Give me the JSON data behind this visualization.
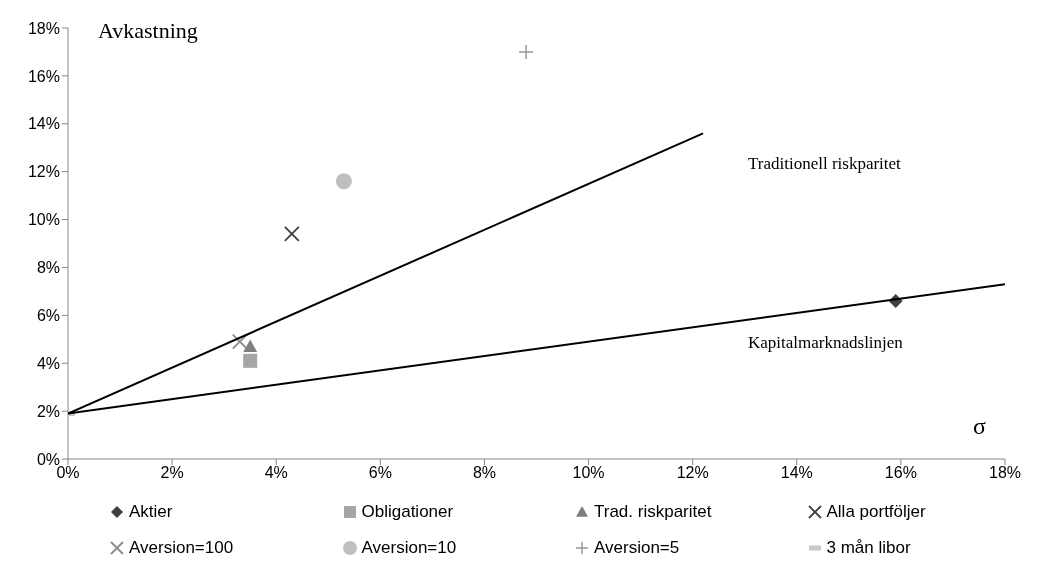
{
  "chart_data": {
    "type": "scatter",
    "xlabel": "σ",
    "ylabel": "Avkastning",
    "xlim": [
      0,
      18
    ],
    "xticks": [
      {
        "value": 0,
        "label": "0%"
      },
      {
        "value": 2,
        "label": "2%"
      },
      {
        "value": 4,
        "label": "4%"
      },
      {
        "value": 6,
        "label": "6%"
      },
      {
        "value": 8,
        "label": "8%"
      },
      {
        "value": 10,
        "label": "10%"
      },
      {
        "value": 12,
        "label": "12%"
      },
      {
        "value": 14,
        "label": "14%"
      },
      {
        "value": 16,
        "label": "16%"
      },
      {
        "value": 18,
        "label": "18%"
      }
    ],
    "ylim": [
      0,
      18
    ],
    "yticks": [
      {
        "value": 0,
        "label": "0%"
      },
      {
        "value": 2,
        "label": "2%"
      },
      {
        "value": 4,
        "label": "4%"
      },
      {
        "value": 6,
        "label": "6%"
      },
      {
        "value": 8,
        "label": "8%"
      },
      {
        "value": 10,
        "label": "10%"
      },
      {
        "value": 12,
        "label": "12%"
      },
      {
        "value": 14,
        "label": "14%"
      },
      {
        "value": 16,
        "label": "16%"
      },
      {
        "value": 18,
        "label": "18%"
      }
    ],
    "grid": false,
    "legend": "bottom",
    "series": [
      {
        "name": "Aktier",
        "color": "#404040",
        "marker": "diamond",
        "x": [
          15.9
        ],
        "values": [
          6.6
        ]
      },
      {
        "name": "Obligationer",
        "color": "#a6a6a6",
        "marker": "square",
        "x": [
          3.5
        ],
        "values": [
          4.1
        ]
      },
      {
        "name": "Trad. riskparitet",
        "color": "#7f7f7f",
        "marker": "triangle",
        "x": [
          3.5
        ],
        "values": [
          4.7
        ]
      },
      {
        "name": "Alla portföljer",
        "color": "#404040",
        "marker": "cross",
        "x": [
          4.3
        ],
        "values": [
          9.4
        ]
      },
      {
        "name": "Aversion=100",
        "color": "#8c8c8c",
        "marker": "cross",
        "x": [
          3.3
        ],
        "values": [
          4.9
        ]
      },
      {
        "name": "Aversion=10",
        "color": "#bfbfbf",
        "marker": "circle",
        "x": [
          5.3
        ],
        "values": [
          11.6
        ]
      },
      {
        "name": "Aversion=5",
        "color": "#999999",
        "marker": "plus",
        "x": [
          8.8
        ],
        "values": [
          17.0
        ]
      },
      {
        "name": "3 mån libor",
        "color": "#c8c8c8",
        "x": [
          0
        ],
        "values": [
          1.9
        ]
      },
      {
        "type": "line",
        "color": "#000000",
        "marker": "none",
        "line_style": "solid",
        "x": [
          0,
          12.2
        ],
        "values": [
          1.9,
          13.6
        ]
      },
      {
        "type": "line",
        "color": "#000000",
        "marker": "none",
        "line_style": "solid",
        "x": [
          0,
          18
        ],
        "values": [
          1.9,
          7.3
        ]
      }
    ],
    "annotations": [
      "Traditionell riskparitet",
      "Kapitalmarknadslinjen"
    ]
  }
}
